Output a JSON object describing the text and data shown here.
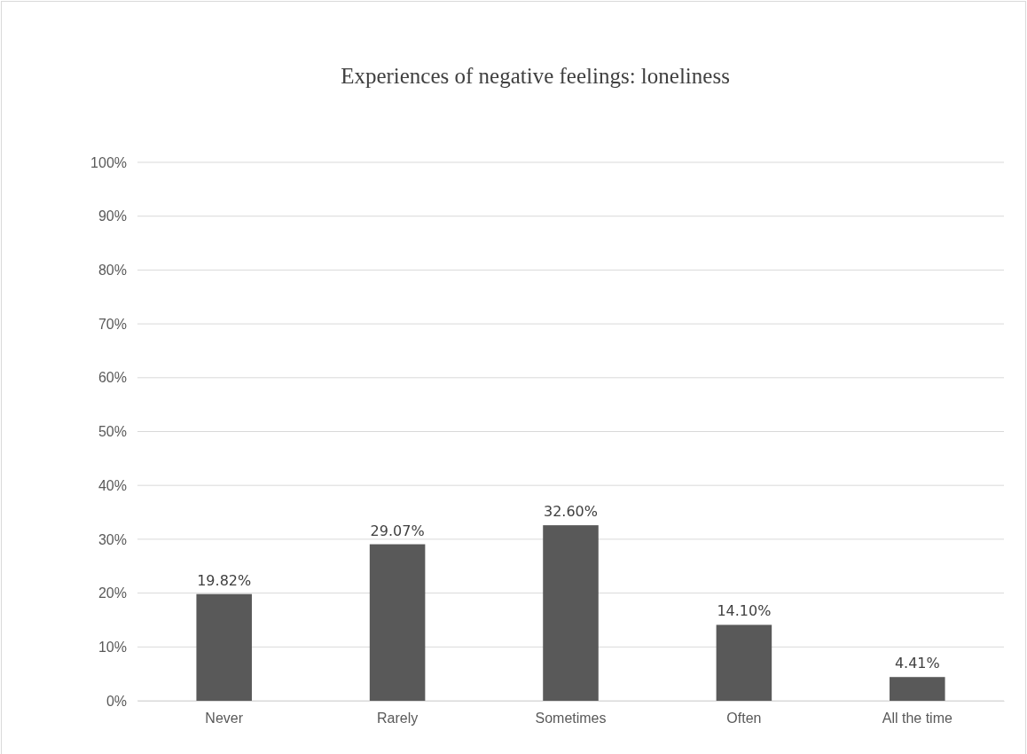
{
  "chart_data": {
    "type": "bar",
    "title": "Experiences of negative feelings: loneliness",
    "categories": [
      "Never",
      "Rarely",
      "Sometimes",
      "Often",
      "All the time"
    ],
    "values": [
      19.82,
      29.07,
      32.6,
      14.1,
      4.41
    ],
    "value_labels": [
      "19.82%",
      "29.07%",
      "32.60%",
      "14.10%",
      "4.41%"
    ],
    "color": "#595959",
    "ylim": [
      0,
      100
    ],
    "yticks": [
      {
        "value": 0,
        "label": "0%"
      },
      {
        "value": 10,
        "label": "10%"
      },
      {
        "value": 20,
        "label": "20%"
      },
      {
        "value": 30,
        "label": "30%"
      },
      {
        "value": 40,
        "label": "40%"
      },
      {
        "value": 50,
        "label": "50%"
      },
      {
        "value": 60,
        "label": "60%"
      },
      {
        "value": 70,
        "label": "70%"
      },
      {
        "value": 80,
        "label": "80%"
      },
      {
        "value": 90,
        "label": "90%"
      },
      {
        "value": 100,
        "label": "100%"
      }
    ],
    "grid": "y"
  }
}
